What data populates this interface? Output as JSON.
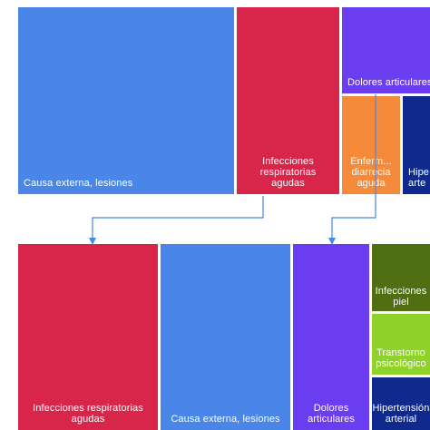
{
  "chart_data": [
    {
      "type": "treemap",
      "tiles": [
        {
          "id": "t1",
          "label": "Causa externa, lesiones",
          "color": "#4a86e8"
        },
        {
          "id": "t2",
          "label": "Infecciones\nrespiratorias\nagudas",
          "color": "#d7264a"
        },
        {
          "id": "t3",
          "label": "Dolores articulares",
          "color": "#6a3df0"
        },
        {
          "id": "t4",
          "label": "Enferm...\ndiarrecia\naguda",
          "color": "#f58a3a"
        },
        {
          "id": "t5",
          "label": "Hipe\narte",
          "color": "#0f2a8c"
        }
      ]
    },
    {
      "type": "treemap",
      "tiles": [
        {
          "id": "b1",
          "label": "Infecciones respiratorias\nagudas",
          "color": "#d7264a"
        },
        {
          "id": "b2",
          "label": "Causa externa, lesiones",
          "color": "#4a86e8"
        },
        {
          "id": "b3",
          "label": "Dolores\narticulares",
          "color": "#6a3df0"
        },
        {
          "id": "b4",
          "label": "Infecciones\npiel",
          "color": "#4f6f12"
        },
        {
          "id": "b5",
          "label": "Transtorno\npsicológico",
          "color": "#8fd22a"
        },
        {
          "id": "b6",
          "label": "Hipertensión\narterial",
          "color": "#0f2a8c"
        }
      ]
    }
  ],
  "colors": {
    "arrow": "#4a86e8"
  }
}
